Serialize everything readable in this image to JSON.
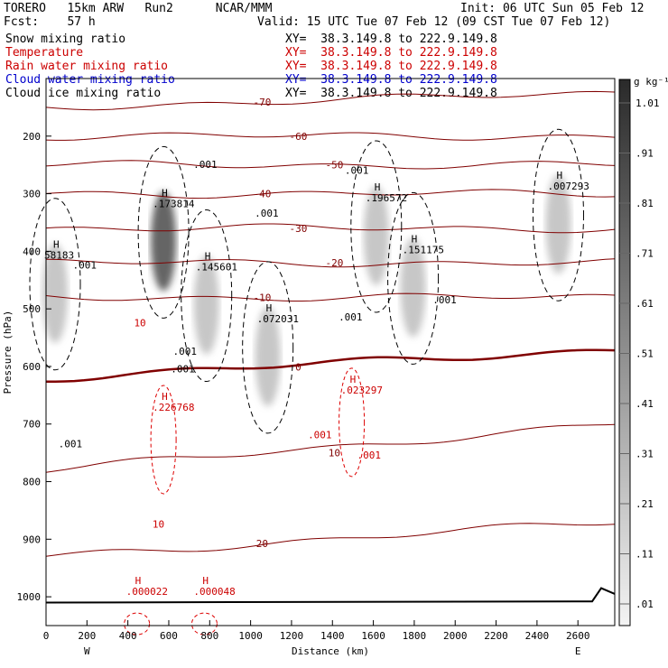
{
  "header": {
    "model": "TORERO   15km ARW   Run2      NCAR/MMM",
    "init": "Init: 06 UTC Sun 05 Feb 12",
    "fcst": "Fcst:    57 h",
    "valid": "Valid: 15 UTC Tue 07 Feb 12 (09 CST Tue 07 Feb 12)"
  },
  "fields": [
    {
      "name": "Snow mixing ratio",
      "xy": "XY=  38.3.149.8 to 222.9.149.8",
      "color": "#000000"
    },
    {
      "name": "Temperature",
      "xy": "XY=  38.3.149.8 to 222.9.149.8",
      "color": "#cc0000"
    },
    {
      "name": "Rain water mixing ratio",
      "xy": "XY=  38.3.149.8 to 222.9.149.8",
      "color": "#cc0000"
    },
    {
      "name": "Cloud water mixing ratio",
      "xy": "XY=  38.3.149.8 to 222.9.149.8",
      "color": "#0000cc"
    },
    {
      "name": "Cloud ice mixing ratio",
      "xy": "XY=  38.3.149.8 to 222.9.149.8",
      "color": "#000000"
    }
  ],
  "chart_data": {
    "type": "heatmap",
    "xlabel": "Distance (km)",
    "ylabel": "Pressure (hPa)",
    "xlim": [
      0,
      2780
    ],
    "ylim": [
      1050,
      100
    ],
    "x_ticks": [
      0,
      200,
      400,
      600,
      800,
      1000,
      1200,
      1400,
      1600,
      1800,
      2000,
      2200,
      2400,
      2600
    ],
    "y_ticks": [
      200,
      300,
      400,
      500,
      600,
      700,
      800,
      900,
      1000
    ],
    "west_label": "W",
    "east_label": "E",
    "colorbar": {
      "unit": "g kg⁻¹",
      "levels": [
        ".01",
        ".11",
        ".21",
        ".31",
        ".41",
        ".51",
        ".61",
        ".71",
        ".81",
        ".91",
        "1.01"
      ]
    },
    "temperature_contours": [
      {
        "label": "-70",
        "values": [
          150,
          125
        ]
      },
      {
        "label": "-60",
        "values": [
          200,
          200
        ]
      },
      {
        "label": "-50",
        "values": [
          250,
          250
        ]
      },
      {
        "label": "-40",
        "values": [
          300,
          300
        ]
      },
      {
        "label": "-30",
        "values": [
          360,
          360
        ]
      },
      {
        "label": "-20",
        "values": [
          420,
          420
        ]
      },
      {
        "label": "-10",
        "values": [
          480,
          480
        ]
      },
      {
        "label": "0",
        "values": [
          620,
          570
        ]
      },
      {
        "label": "10",
        "values": [
          780,
          700
        ]
      },
      {
        "label": "20",
        "values": [
          930,
          870
        ]
      }
    ],
    "snow_maxima": [
      {
        "x": 0,
        "p": 410,
        "label": "58183"
      },
      {
        "x": 530,
        "p": 320,
        "label": ".173814"
      },
      {
        "x": 740,
        "p": 430,
        "label": ".145601"
      },
      {
        "x": 1040,
        "p": 520,
        "label": ".072031"
      },
      {
        "x": 1570,
        "p": 310,
        "label": ".196572"
      },
      {
        "x": 1750,
        "p": 400,
        "label": ".151175"
      },
      {
        "x": 2460,
        "p": 290,
        "label": ".007293"
      }
    ],
    "rain_maxima": [
      {
        "x": 530,
        "p": 680,
        "label": ".226768"
      },
      {
        "x": 1450,
        "p": 650,
        "label": ".023297"
      },
      {
        "x": 400,
        "p": 1000,
        "label": ".000022"
      },
      {
        "x": 730,
        "p": 1000,
        "label": ".000048"
      }
    ],
    "contour_labels": [
      {
        "x": 720,
        "p": 255,
        "label": ".001"
      },
      {
        "x": 1020,
        "p": 340,
        "label": ".001"
      },
      {
        "x": 1460,
        "p": 265,
        "label": ".001"
      },
      {
        "x": 130,
        "p": 430,
        "label": ".001"
      },
      {
        "x": 1430,
        "p": 520,
        "label": ".001"
      },
      {
        "x": 1890,
        "p": 490,
        "label": ".001"
      },
      {
        "x": 620,
        "p": 580,
        "label": ".001"
      },
      {
        "x": 610,
        "p": 610,
        "label": ".001"
      },
      {
        "x": 60,
        "p": 740,
        "label": ".001"
      },
      {
        "x": 1280,
        "p": 725,
        "label": ".001"
      },
      {
        "x": 1520,
        "p": 760,
        "label": ".001"
      },
      {
        "x": 430,
        "p": 530,
        "label": "10"
      },
      {
        "x": 520,
        "p": 880,
        "label": "10"
      }
    ]
  }
}
